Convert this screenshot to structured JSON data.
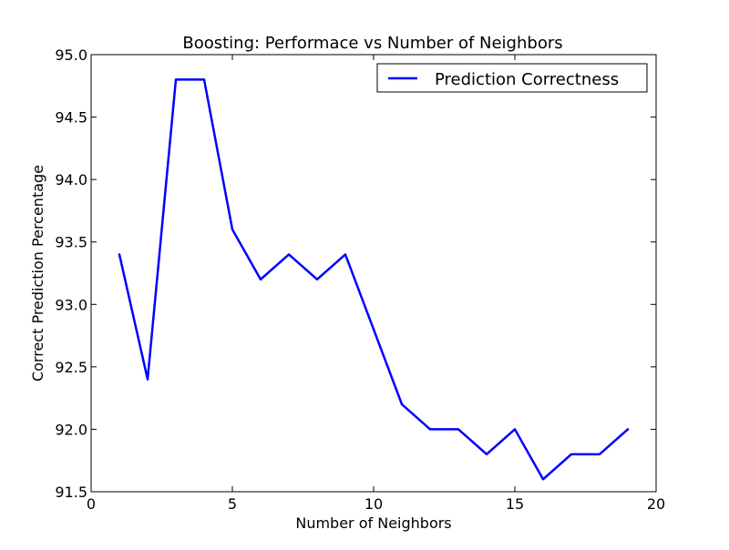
{
  "chart_data": {
    "type": "line",
    "title": "Boosting: Performace vs Number of Neighbors",
    "xlabel": "Number of Neighbors",
    "ylabel": "Correct Prediction Percentage",
    "xlim": [
      0,
      20
    ],
    "ylim": [
      91.5,
      95.0
    ],
    "xticks": [
      "0",
      "5",
      "10",
      "15",
      "20"
    ],
    "yticks": [
      "91.5",
      "92.0",
      "92.5",
      "93.0",
      "93.5",
      "94.0",
      "94.5",
      "95.0"
    ],
    "grid": false,
    "legend_position": "top-right",
    "series": [
      {
        "name": "Prediction Correctness",
        "color": "#0000ff",
        "x": [
          1,
          2,
          3,
          4,
          5,
          6,
          7,
          8,
          9,
          10,
          11,
          12,
          13,
          14,
          15,
          16,
          17,
          18,
          19
        ],
        "y": [
          93.4,
          92.4,
          94.8,
          94.8,
          93.6,
          93.2,
          93.4,
          93.2,
          93.4,
          92.8,
          92.2,
          92.0,
          92.0,
          91.8,
          92.0,
          91.6,
          91.8,
          91.8,
          92.0
        ]
      }
    ]
  }
}
